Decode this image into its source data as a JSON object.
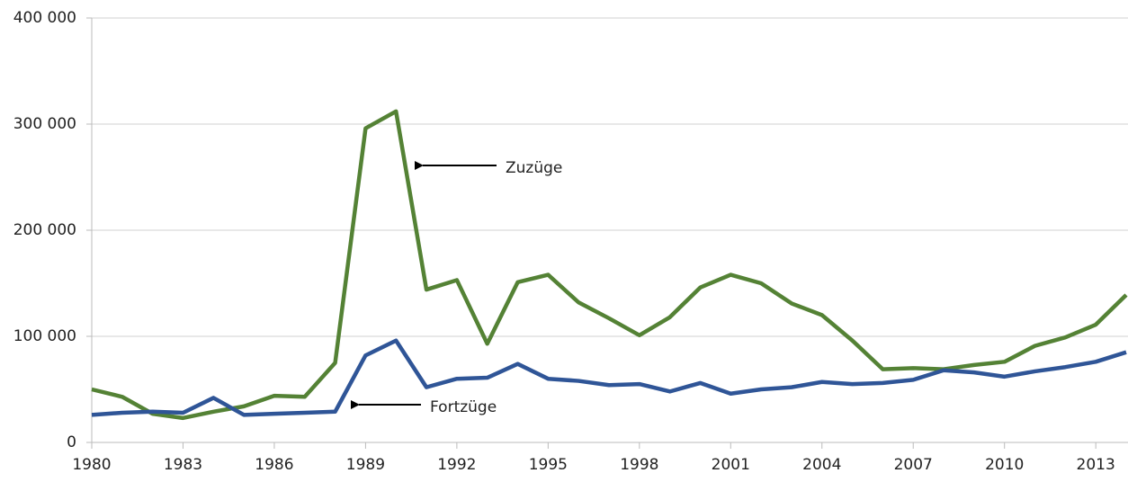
{
  "chart_data": {
    "type": "line",
    "x": [
      1980,
      1981,
      1982,
      1983,
      1984,
      1985,
      1986,
      1987,
      1988,
      1989,
      1990,
      1991,
      1992,
      1993,
      1994,
      1995,
      1996,
      1997,
      1998,
      1999,
      2000,
      2001,
      2002,
      2003,
      2004,
      2005,
      2006,
      2007,
      2008,
      2009,
      2010,
      2011,
      2012,
      2013,
      2014
    ],
    "series": [
      {
        "name": "Zuzüge",
        "color": "#548235",
        "values": [
          50000,
          43000,
          27000,
          23000,
          29000,
          34000,
          44000,
          43000,
          75000,
          296000,
          312000,
          144000,
          153000,
          93000,
          151000,
          158000,
          132000,
          117000,
          101000,
          118000,
          146000,
          158000,
          150000,
          131000,
          120000,
          96000,
          69000,
          70000,
          69000,
          73000,
          76000,
          91000,
          99000,
          111000,
          139000
        ]
      },
      {
        "name": "Fortzüge",
        "color": "#2f5597",
        "values": [
          26000,
          28000,
          29000,
          28000,
          42000,
          26000,
          27000,
          28000,
          29000,
          82000,
          96000,
          52000,
          60000,
          61000,
          74000,
          60000,
          58000,
          54000,
          55000,
          48000,
          56000,
          46000,
          50000,
          52000,
          57000,
          55000,
          56000,
          59000,
          68000,
          66000,
          62000,
          67000,
          71000,
          76000,
          85000
        ]
      }
    ],
    "xlim": [
      1980,
      2014
    ],
    "xticks": [
      1980,
      1983,
      1986,
      1989,
      1992,
      1995,
      1998,
      2001,
      2004,
      2007,
      2010,
      2013
    ],
    "ylim": [
      0,
      400000
    ],
    "yticks": [
      0,
      {
        "value": 100000,
        "label": "100 000"
      },
      {
        "value": 200000,
        "label": "200 000"
      },
      {
        "value": 300000,
        "label": "300 000"
      },
      {
        "value": 400000,
        "label": "400 000"
      }
    ],
    "grid": true
  }
}
